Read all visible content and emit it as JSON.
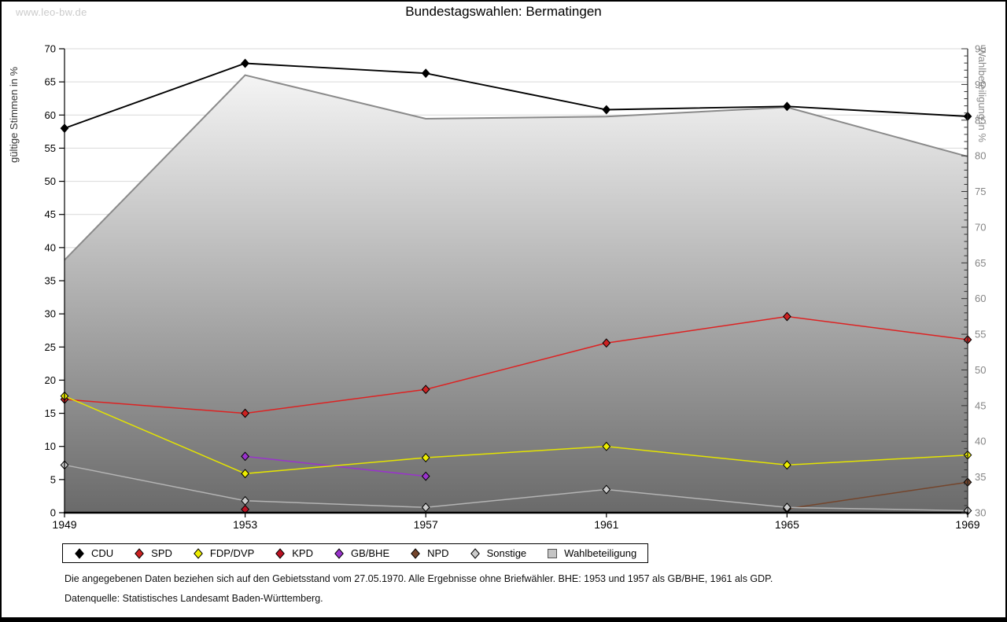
{
  "watermark": "www.leo-bw.de",
  "title": "Bundestagswahlen: Bermatingen",
  "chart_data": {
    "type": "line",
    "x": [
      1949,
      1953,
      1957,
      1961,
      1965,
      1969
    ],
    "left_axis": {
      "label": "gültige Stimmen in %",
      "min": 0,
      "max": 70,
      "tick_step": 5
    },
    "right_axis": {
      "label": "Wahlbeteiligung in %",
      "min": 30,
      "max": 95,
      "tick_step": 5,
      "minor_step": 1
    },
    "grid": "horizontal",
    "legend_position": "bottom",
    "series": [
      {
        "name": "CDU",
        "axis": "left",
        "line_color": "#000000",
        "marker_color": "#000000",
        "values": [
          58.0,
          67.8,
          66.3,
          60.8,
          61.3,
          59.8
        ]
      },
      {
        "name": "SPD",
        "axis": "left",
        "line_color": "#dd2222",
        "marker_color": "#cc2222",
        "values": [
          17.1,
          15.0,
          18.6,
          25.6,
          29.6,
          26.1
        ]
      },
      {
        "name": "FDP/DVP",
        "axis": "left",
        "line_color": "#e4e400",
        "marker_color": "#eded00",
        "values": [
          17.6,
          5.9,
          8.3,
          10.0,
          7.2,
          8.7
        ]
      },
      {
        "name": "KPD",
        "axis": "left",
        "line_color": "#aa1122",
        "marker_color": "#bb1122",
        "values": [
          null,
          0.5,
          null,
          null,
          null,
          null
        ]
      },
      {
        "name": "GB/BHE",
        "axis": "left",
        "line_color": "#9933cc",
        "marker_color": "#9933cc",
        "values": [
          null,
          8.5,
          5.5,
          null,
          null,
          null
        ]
      },
      {
        "name": "NPD",
        "axis": "left",
        "line_color": "#74452c",
        "marker_color": "#74452c",
        "values": [
          null,
          null,
          null,
          null,
          0.6,
          4.6
        ]
      },
      {
        "name": "Sonstige",
        "axis": "left",
        "line_color": "#b4b4b4",
        "marker_color": "#cccccc",
        "values": [
          7.2,
          1.8,
          0.8,
          3.5,
          0.8,
          0.3
        ]
      },
      {
        "name": "Wahlbeteiligung",
        "axis": "right",
        "type": "area",
        "edge_color": "#8a8a8a",
        "fill_top": "#fdfdfd",
        "fill_bottom": "#6a6a6a",
        "values": [
          65.4,
          91.3,
          85.2,
          85.5,
          86.8,
          79.9
        ]
      }
    ]
  },
  "legend": {
    "items": [
      {
        "label": "CDU",
        "shape": "diamond",
        "color": "#000000"
      },
      {
        "label": "SPD",
        "shape": "diamond",
        "color": "#cc2222"
      },
      {
        "label": "FDP/DVP",
        "shape": "diamond",
        "color": "#eded00"
      },
      {
        "label": "KPD",
        "shape": "diamond",
        "color": "#bb1122"
      },
      {
        "label": "GB/BHE",
        "shape": "diamond",
        "color": "#9933cc"
      },
      {
        "label": "NPD",
        "shape": "diamond",
        "color": "#74452c"
      },
      {
        "label": "Sonstige",
        "shape": "diamond",
        "color": "#cccccc"
      },
      {
        "label": "Wahlbeteiligung",
        "shape": "square",
        "color": "#c4c4c4"
      }
    ]
  },
  "footnotes": {
    "line1": "Die angegebenen Daten beziehen sich auf den Gebietsstand vom 27.05.1970. Alle Ergebnisse ohne Briefwähler. BHE: 1953 und 1957 als GB/BHE, 1961 als GDP.",
    "line2": "Datenquelle: Statistisches Landesamt Baden-Württemberg."
  }
}
